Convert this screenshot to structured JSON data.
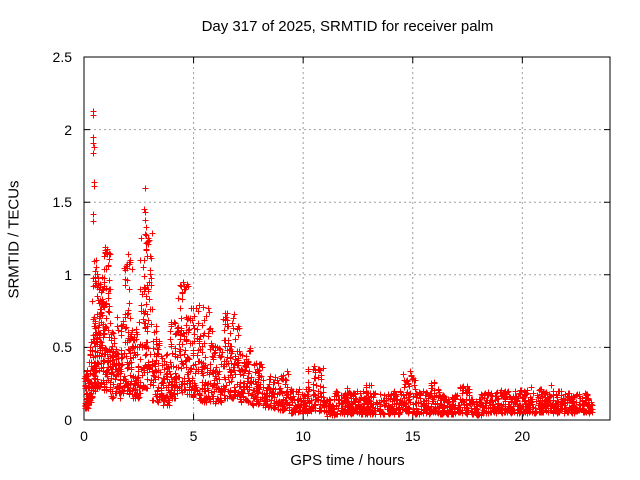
{
  "window": {
    "background": "#ffffff"
  },
  "chart_data": {
    "type": "scatter",
    "title": "Day 317 of 2025, SRMTID for receiver palm",
    "xlabel": "GPS time / hours",
    "ylabel": "SRMTID / TECUs",
    "xlim": [
      0,
      24
    ],
    "ylim": [
      0,
      2.5
    ],
    "xticks": [
      0,
      5,
      10,
      15,
      20
    ],
    "yticks": [
      0,
      0.5,
      1,
      1.5,
      2,
      2.5
    ],
    "xtick_labels": [
      "0",
      "5",
      "10",
      "15",
      "20"
    ],
    "ytick_labels": [
      "0",
      "0.5",
      "1",
      "1.5",
      "2",
      "2.5"
    ],
    "grid": "dashed",
    "grid_color": "#9e9e9e",
    "frame_color": "#000000",
    "marker": "plus",
    "marker_color": "#ff0000",
    "series_name": "SRMTID",
    "x_data_range": [
      0,
      23.2
    ],
    "seed": 317,
    "density_bands": [
      [
        0.0,
        0.2,
        40,
        0.08,
        0.35,
        1.4
      ],
      [
        0.2,
        0.35,
        28,
        0.12,
        0.55,
        1.4
      ],
      [
        0.35,
        0.6,
        70,
        0.2,
        1.12,
        1.6
      ],
      [
        0.6,
        0.9,
        80,
        0.22,
        1.0,
        1.5
      ],
      [
        0.9,
        1.2,
        70,
        0.2,
        1.18,
        1.6
      ],
      [
        1.2,
        1.5,
        48,
        0.15,
        0.62,
        1.3
      ],
      [
        1.5,
        1.8,
        50,
        0.15,
        0.78,
        1.4
      ],
      [
        1.8,
        2.2,
        70,
        0.18,
        1.1,
        1.6
      ],
      [
        2.2,
        2.55,
        50,
        0.15,
        0.68,
        1.4
      ],
      [
        2.55,
        3.1,
        92,
        0.22,
        1.3,
        1.7
      ],
      [
        3.1,
        3.45,
        48,
        0.12,
        0.65,
        1.4
      ],
      [
        3.45,
        3.9,
        50,
        0.1,
        0.48,
        1.3
      ],
      [
        3.9,
        4.3,
        55,
        0.15,
        0.68,
        1.4
      ],
      [
        4.3,
        4.8,
        72,
        0.18,
        0.95,
        1.5
      ],
      [
        4.8,
        5.25,
        60,
        0.15,
        0.8,
        1.5
      ],
      [
        5.25,
        5.6,
        48,
        0.12,
        0.72,
        1.5
      ],
      [
        5.6,
        5.85,
        30,
        0.12,
        0.75,
        1.5
      ],
      [
        5.85,
        6.3,
        52,
        0.12,
        0.52,
        1.4
      ],
      [
        6.3,
        6.62,
        45,
        0.15,
        0.74,
        1.5
      ],
      [
        6.62,
        7.1,
        68,
        0.15,
        0.68,
        1.5
      ],
      [
        7.1,
        7.6,
        55,
        0.12,
        0.5,
        1.3
      ],
      [
        7.6,
        8.2,
        60,
        0.1,
        0.4,
        1.3
      ],
      [
        8.2,
        8.8,
        55,
        0.08,
        0.3,
        1.3
      ],
      [
        8.8,
        9.4,
        55,
        0.07,
        0.32,
        1.4
      ],
      [
        9.4,
        10.2,
        70,
        0.05,
        0.22,
        1.3
      ],
      [
        10.2,
        10.9,
        62,
        0.06,
        0.36,
        1.6
      ],
      [
        10.9,
        11.4,
        45,
        0.03,
        0.16,
        1.2
      ],
      [
        11.4,
        14.4,
        255,
        0.04,
        0.2,
        1.4
      ],
      [
        11.9,
        12.1,
        18,
        0.05,
        0.22,
        1.5
      ],
      [
        12.8,
        13.1,
        22,
        0.05,
        0.24,
        1.5
      ],
      [
        14.4,
        15.1,
        65,
        0.05,
        0.32,
        1.7
      ],
      [
        15.1,
        15.8,
        60,
        0.04,
        0.2,
        1.4
      ],
      [
        15.8,
        16.2,
        40,
        0.05,
        0.26,
        1.6
      ],
      [
        16.2,
        17.1,
        80,
        0.04,
        0.18,
        1.3
      ],
      [
        17.1,
        17.6,
        45,
        0.04,
        0.24,
        1.5
      ],
      [
        17.6,
        18.1,
        40,
        0.03,
        0.15,
        1.2
      ],
      [
        18.1,
        19.0,
        80,
        0.05,
        0.2,
        1.4
      ],
      [
        19.0,
        20.0,
        90,
        0.05,
        0.21,
        1.4
      ],
      [
        20.0,
        21.0,
        90,
        0.05,
        0.22,
        1.5
      ],
      [
        21.0,
        22.0,
        90,
        0.05,
        0.2,
        1.4
      ],
      [
        22.0,
        23.0,
        90,
        0.05,
        0.19,
        1.4
      ],
      [
        23.0,
        23.2,
        20,
        0.05,
        0.16,
        1.2
      ]
    ],
    "outlier_points": [
      [
        0.41,
        2.13
      ],
      [
        0.43,
        2.1
      ],
      [
        0.42,
        1.95
      ],
      [
        0.43,
        1.91
      ],
      [
        0.44,
        1.88
      ],
      [
        0.42,
        1.84
      ],
      [
        0.46,
        1.64
      ],
      [
        0.47,
        1.61
      ],
      [
        0.4,
        1.42
      ],
      [
        0.42,
        1.37
      ],
      [
        0.95,
        1.19
      ],
      [
        0.98,
        1.17
      ],
      [
        0.9,
        1.13
      ],
      [
        2.8,
        1.6
      ],
      [
        2.76,
        1.45
      ],
      [
        2.8,
        1.43
      ],
      [
        2.78,
        1.38
      ],
      [
        2.83,
        1.33
      ],
      [
        2.79,
        1.28
      ],
      [
        2.85,
        1.22
      ],
      [
        2.81,
        1.17
      ],
      [
        2.02,
        1.14
      ],
      [
        2.08,
        1.1
      ],
      [
        1.95,
        1.05
      ],
      [
        4.52,
        0.95
      ],
      [
        4.57,
        0.92
      ],
      [
        4.48,
        0.88
      ],
      [
        5.45,
        0.78
      ],
      [
        5.65,
        0.77
      ],
      [
        6.42,
        0.74
      ],
      [
        6.85,
        0.73
      ],
      [
        6.8,
        0.7
      ],
      [
        9.25,
        0.34
      ],
      [
        10.5,
        0.37
      ],
      [
        10.54,
        0.33
      ],
      [
        14.88,
        0.34
      ],
      [
        14.92,
        0.31
      ],
      [
        14.95,
        0.28
      ],
      [
        15.95,
        0.26
      ],
      [
        17.3,
        0.23
      ],
      [
        13.0,
        0.24
      ],
      [
        12.0,
        0.22
      ],
      [
        21.3,
        0.24
      ],
      [
        20.4,
        0.23
      ]
    ]
  }
}
